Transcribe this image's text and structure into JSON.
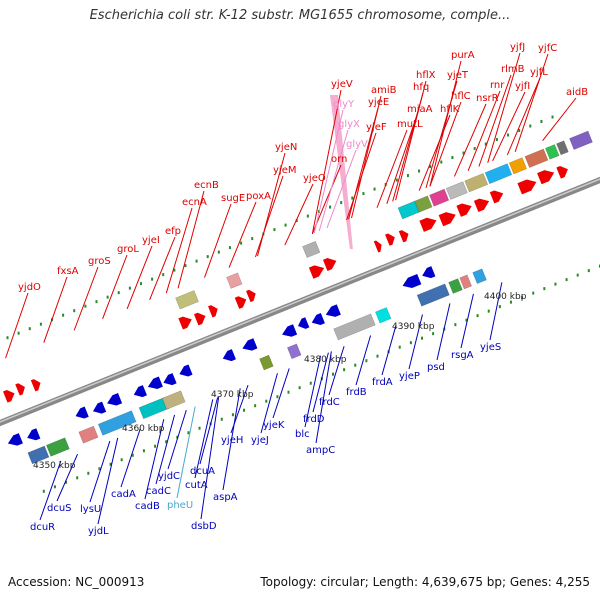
{
  "title": "Escherichia coli str. K-12 substr. MG1655 chromosome, comple...",
  "footer": {
    "accession": "Accession: NC_000913",
    "summary": "Topology: circular; Length: 4,639,675 bp; Genes: 4,255"
  },
  "colors": {
    "forward_label": "#dd0000",
    "reverse_label": "#0000bb",
    "rna_forward_label": "#ee88cc",
    "rna_reverse_label": "#44aacc",
    "backbone": "#888888",
    "forward_arrow": "#ee0000",
    "reverse_arrow": "#0000cc"
  },
  "position_labels": [
    "4350 kbp",
    "4360 kbp",
    "4370 kbp",
    "4380 kbp",
    "4390 kbp",
    "4400 kbp"
  ],
  "forward_genes": [
    "yjdO",
    "fxsA",
    "groS",
    "groL",
    "yjeI",
    "efp",
    "ecnA",
    "ecnB",
    "sugE",
    "poxA",
    "yjeN",
    "yjeM",
    "yjeO",
    "orn",
    "yjeV",
    "yjeE",
    "yjeF",
    "amiB",
    "mutL",
    "miaA",
    "hfq",
    "hflX",
    "hflK",
    "hflC",
    "yjeT",
    "purA",
    "nsrR",
    "rnr",
    "rlmB",
    "yjfI",
    "yjfJ",
    "yjfL",
    "yjfC",
    "aidB"
  ],
  "forward_rnas": [
    "glyY",
    "glyX",
    "glyV"
  ],
  "reverse_genes": [
    "dcuR",
    "dcuS",
    "lysU",
    "yjdL",
    "cadA",
    "cadB",
    "cadC",
    "yjdC",
    "cutA",
    "dcuA",
    "aspA",
    "dsbD",
    "yjeH",
    "yjeJ",
    "yjeK",
    "blc",
    "ampC",
    "frdD",
    "frdC",
    "frdB",
    "frdA",
    "yjeP",
    "psd",
    "rsgA",
    "yjeS"
  ],
  "reverse_rnas": [
    "pheU"
  ]
}
